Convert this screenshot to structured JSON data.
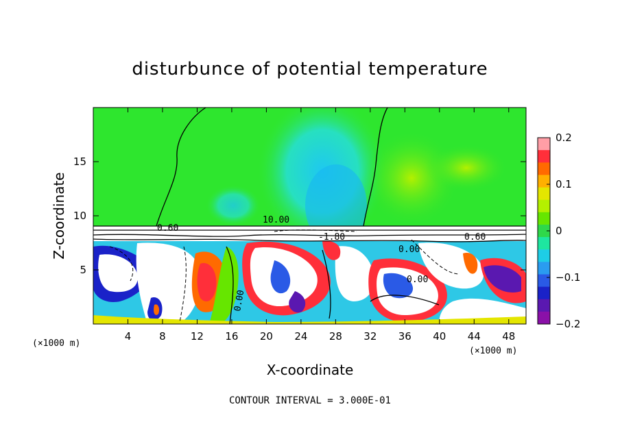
{
  "chart_data": {
    "type": "heatmap",
    "title": "disturbunce of potential temperature",
    "xlabel": "X-coordinate",
    "ylabel": "Z-coordinate",
    "x_unit": "(×1000 m)",
    "x_ticks": [
      4,
      8,
      12,
      16,
      20,
      24,
      28,
      32,
      36,
      40,
      44,
      48
    ],
    "y_ticks": [
      5,
      10,
      15
    ],
    "xlim": [
      0,
      50
    ],
    "ylim": [
      0,
      20
    ],
    "colorbar": {
      "ticks": [
        0.2,
        0.1,
        0,
        -0.1,
        -0.2
      ],
      "tick_labels": [
        "0.2",
        "0.1",
        "0",
        "−0.1",
        "−0.2"
      ],
      "range": [
        -0.2,
        0.2
      ],
      "colors": [
        "#ff9ea6",
        "#ff2f3a",
        "#ff6a00",
        "#ffb000",
        "#e4e600",
        "#b4f000",
        "#66e600",
        "#2fd84a",
        "#1ee6a0",
        "#1ecde6",
        "#2a9cf0",
        "#2a5ae6",
        "#1a22c8",
        "#5a18b0",
        "#8a10a8"
      ]
    },
    "contour_labels": [
      "0.60",
      "10.00",
      "-1.80",
      "0.60",
      "0.00",
      "0.00",
      "0.00"
    ],
    "contour_interval": "CONTOUR INTERVAL = 3.000E-01"
  },
  "colors": {
    "background_green": "#2ee62e",
    "upper_cyan": "#2ee6c8",
    "accent_white": "#ffffff"
  }
}
